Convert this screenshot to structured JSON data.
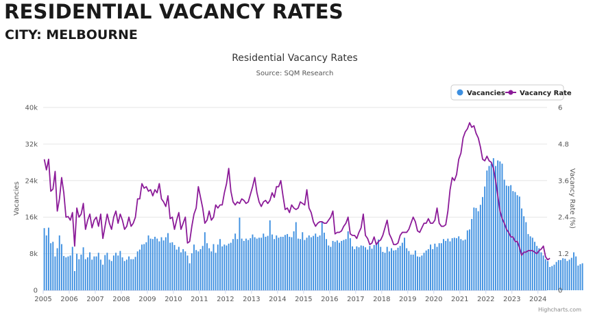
{
  "page": {
    "title": "RESIDENTIAL VACANCY RATES",
    "subtitle": "CITY: MELBOURNE"
  },
  "chart_data": {
    "type": "bar+line",
    "title": "Residential Vacancy Rates",
    "subtitle": "Source: SQM Research",
    "x_label": "",
    "y_left_label": "Vacancies",
    "y_right_label": "Vacancy Rate (%)",
    "y_left_range": [
      0,
      40000
    ],
    "y_right_range": [
      0,
      6
    ],
    "y_left_ticks": [
      "0",
      "8k",
      "16k",
      "24k",
      "32k",
      "40k"
    ],
    "y_right_ticks": [
      "0",
      "1.2",
      "2.4",
      "3.6",
      "4.8",
      "6"
    ],
    "x_ticks": [
      "2005",
      "2006",
      "2007",
      "2008",
      "2009",
      "2010",
      "2011",
      "2012",
      "2013",
      "2014",
      "2015",
      "2016",
      "2017",
      "2018",
      "2019",
      "2020",
      "2021",
      "2022",
      "2023",
      "2024"
    ],
    "x_range": [
      2005.0,
      2024.35
    ],
    "grid": true,
    "legend_position": "top-right",
    "colors": {
      "bars": "#3d8fe0",
      "line": "#8b1a98",
      "grid": "#e6e6e6"
    },
    "credits": "Highcharts.com",
    "series": [
      {
        "name": "Vacancies",
        "type": "bar",
        "monthly_from": "2005-01",
        "values": [
          13600,
          12000,
          13700,
          10300,
          10600,
          7400,
          9200,
          12000,
          10100,
          7500,
          7200,
          7400,
          7600,
          9500,
          4200,
          8000,
          6800,
          7800,
          9400,
          6800,
          7200,
          8300,
          6700,
          7400,
          7400,
          8200,
          6700,
          5600,
          7700,
          8200,
          6700,
          6400,
          7600,
          8200,
          7600,
          8600,
          7200,
          6400,
          6700,
          7400,
          6800,
          6800,
          7300,
          8500,
          8900,
          10000,
          10100,
          10500,
          12000,
          11300,
          11200,
          11700,
          11300,
          10700,
          11600,
          10900,
          11600,
          12500,
          10400,
          10500,
          9900,
          8900,
          9500,
          8300,
          9000,
          8500,
          7600,
          5900,
          8100,
          10000,
          8800,
          8500,
          9000,
          9700,
          12700,
          10300,
          9200,
          8500,
          10100,
          8200,
          10000,
          11200,
          9600,
          10000,
          9800,
          10200,
          10400,
          11200,
          12400,
          11200,
          15900,
          11300,
          10800,
          11300,
          11000,
          11400,
          12200,
          11600,
          11300,
          11500,
          11500,
          12400,
          11700,
          11900,
          15300,
          12200,
          11200,
          12000,
          11500,
          11700,
          11700,
          12100,
          12300,
          11700,
          11600,
          12900,
          14900,
          11300,
          11200,
          12700,
          11000,
          11500,
          12000,
          11600,
          11900,
          12400,
          11700,
          12000,
          15000,
          12600,
          11200,
          9800,
          9500,
          10800,
          10600,
          10900,
          10400,
          10800,
          11000,
          11200,
          12900,
          11400,
          9600,
          9000,
          9600,
          9400,
          9800,
          9700,
          9400,
          8900,
          9700,
          9100,
          9900,
          10400,
          11100,
          9500,
          8400,
          8200,
          9500,
          8500,
          9200,
          8700,
          8800,
          9300,
          9700,
          10400,
          11500,
          9200,
          8600,
          7800,
          7800,
          8700,
          7400,
          7300,
          7600,
          8200,
          8700,
          9000,
          10000,
          9000,
          10200,
          9500,
          10300,
          10300,
          11200,
          10800,
          11300,
          10700,
          11400,
          11500,
          11400,
          11800,
          11200,
          10900,
          11100,
          13100,
          13300,
          15600,
          18100,
          18000,
          17300,
          18700,
          20400,
          22700,
          26200,
          27200,
          27700,
          28900,
          27200,
          28400,
          28200,
          27700,
          24200,
          22900,
          22800,
          23000,
          21700,
          21500,
          20800,
          20500,
          17900,
          16200,
          14900,
          12300,
          11800,
          11500,
          10600,
          9700,
          9200,
          8300,
          7600,
          6800,
          6400,
          5100,
          5300,
          5600,
          6200,
          6600,
          6600,
          7000,
          6900,
          6400,
          6700,
          7100,
          8300,
          7400,
          5400,
          5700,
          5900
        ]
      },
      {
        "name": "Vacancy Rate",
        "type": "line",
        "monthly_from": "2005-01",
        "values": [
          4.3,
          3.95,
          4.3,
          3.25,
          3.32,
          3.9,
          2.6,
          3.0,
          3.7,
          3.2,
          2.4,
          2.42,
          2.3,
          2.55,
          1.45,
          2.7,
          2.4,
          2.5,
          2.85,
          2.0,
          2.3,
          2.5,
          2.05,
          2.3,
          2.4,
          2.1,
          2.5,
          1.7,
          2.1,
          2.5,
          2.2,
          2.0,
          2.4,
          2.6,
          2.2,
          2.5,
          2.3,
          2.0,
          2.1,
          2.4,
          2.1,
          2.2,
          2.4,
          3.0,
          3.0,
          3.5,
          3.35,
          3.4,
          3.25,
          3.3,
          3.1,
          3.3,
          3.2,
          3.5,
          3.0,
          2.9,
          2.75,
          3.1,
          2.35,
          2.4,
          2.0,
          2.3,
          2.55,
          2.0,
          2.2,
          2.4,
          1.55,
          1.6,
          2.1,
          2.5,
          2.7,
          3.4,
          3.05,
          2.7,
          2.2,
          2.3,
          2.6,
          2.3,
          2.4,
          2.8,
          2.7,
          2.8,
          2.8,
          3.2,
          3.5,
          4.0,
          3.25,
          2.9,
          2.8,
          2.9,
          2.85,
          3.0,
          2.95,
          2.85,
          2.9,
          3.15,
          3.4,
          3.7,
          3.2,
          2.9,
          2.75,
          2.9,
          2.95,
          2.85,
          2.95,
          3.2,
          3.05,
          3.4,
          3.4,
          3.6,
          3.1,
          2.65,
          2.7,
          2.55,
          2.8,
          2.7,
          2.65,
          2.7,
          2.9,
          2.85,
          2.8,
          3.3,
          2.7,
          2.55,
          2.25,
          2.1,
          2.2,
          2.25,
          2.25,
          2.2,
          2.2,
          2.3,
          2.4,
          2.6,
          1.85,
          1.9,
          1.9,
          1.95,
          2.1,
          2.2,
          2.4,
          1.85,
          1.8,
          1.8,
          1.7,
          1.9,
          2.05,
          2.5,
          1.8,
          1.7,
          1.5,
          1.55,
          1.75,
          1.5,
          1.6,
          1.65,
          1.8,
          2.05,
          2.3,
          1.85,
          1.7,
          1.5,
          1.5,
          1.55,
          1.8,
          1.9,
          1.9,
          1.9,
          2.0,
          2.2,
          2.4,
          2.25,
          1.95,
          1.9,
          2.05,
          2.2,
          2.2,
          2.35,
          2.2,
          2.2,
          2.3,
          2.7,
          2.2,
          2.1,
          2.1,
          2.15,
          2.6,
          3.3,
          3.7,
          3.6,
          3.8,
          4.3,
          4.5,
          5.0,
          5.2,
          5.3,
          5.5,
          5.35,
          5.4,
          5.15,
          5.0,
          4.7,
          4.3,
          4.25,
          4.4,
          4.25,
          4.2,
          4.0,
          3.6,
          3.1,
          2.6,
          2.35,
          2.2,
          2.0,
          1.9,
          1.75,
          1.75,
          1.6,
          1.6,
          1.4,
          1.15,
          1.25,
          1.25,
          1.3,
          1.3,
          1.3,
          1.25,
          1.2,
          1.3,
          1.35,
          1.45,
          1.1,
          1.0,
          1.05
        ]
      }
    ]
  }
}
